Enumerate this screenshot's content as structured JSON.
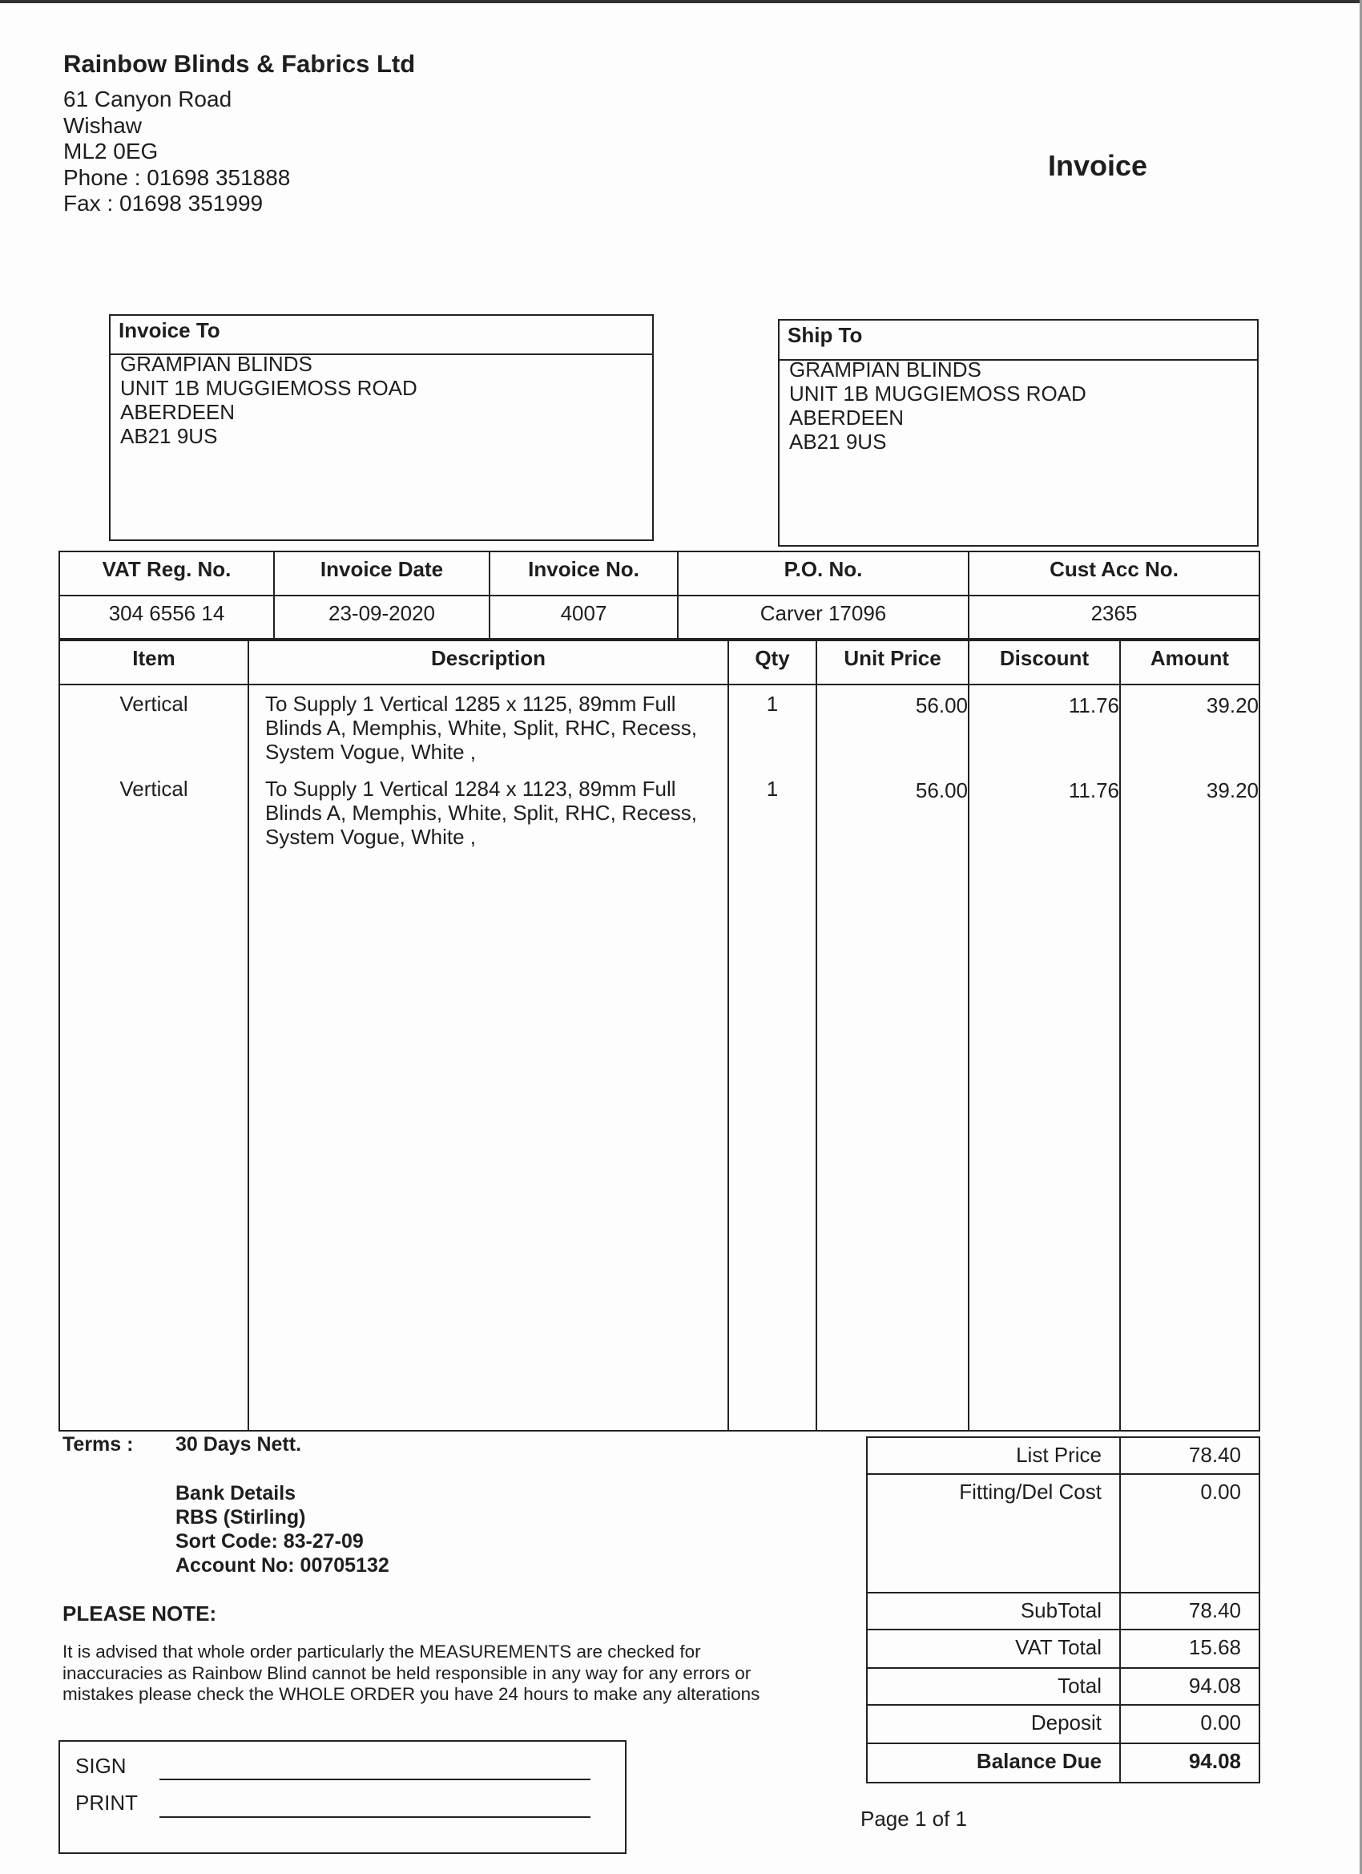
{
  "company": {
    "name": "Rainbow Blinds & Fabrics Ltd",
    "address_lines": [
      "61 Canyon Road",
      "Wishaw",
      "ML2 0EG",
      "Phone : 01698 351888",
      "Fax : 01698 351999"
    ]
  },
  "document_title": "Invoice",
  "invoice_to": {
    "label": "Invoice To",
    "lines": [
      "GRAMPIAN BLINDS",
      "UNIT 1B MUGGIEMOSS ROAD",
      "ABERDEEN",
      "AB21 9US"
    ]
  },
  "ship_to": {
    "label": "Ship To",
    "lines": [
      "GRAMPIAN BLINDS",
      "UNIT 1B MUGGIEMOSS ROAD",
      "ABERDEEN",
      "AB21 9US"
    ]
  },
  "reference": {
    "headers": [
      "VAT Reg. No.",
      "Invoice Date",
      "Invoice No.",
      "P.O. No.",
      "Cust Acc No."
    ],
    "values": [
      "304 6556 14",
      "23-09-2020",
      "4007",
      "Carver 17096",
      "2365"
    ]
  },
  "items": {
    "headers": [
      "Item",
      "Description",
      "Qty",
      "Unit Price",
      "Discount",
      "Amount"
    ],
    "rows": [
      {
        "item": "Vertical",
        "description": [
          "To Supply 1 Vertical  1285 x 1125, 89mm Full",
          "Blinds A, Memphis, White, Split, RHC, Recess,",
          "System Vogue, White ,"
        ],
        "qty": "1",
        "unit_price": "56.00",
        "discount": "11.76",
        "amount": "39.20"
      },
      {
        "item": "Vertical",
        "description": [
          "To Supply 1 Vertical  1284 x 1123, 89mm Full",
          "Blinds A, Memphis, White, Split, RHC, Recess,",
          "System Vogue, White ,"
        ],
        "qty": "1",
        "unit_price": "56.00",
        "discount": "11.76",
        "amount": "39.20"
      }
    ]
  },
  "terms": {
    "label": "Terms :",
    "value": "30 Days Nett.",
    "bank_lines": [
      "Bank Details",
      "RBS (Stirling)",
      "Sort Code: 83-27-09",
      "Account No: 00705132"
    ]
  },
  "please_note": {
    "title": "PLEASE NOTE:",
    "lines": [
      "It is advised that whole order particularly the MEASUREMENTS are checked for",
      "inaccuracies as Rainbow Blind cannot be held responsible in any way for any errors or",
      "mistakes please check the WHOLE ORDER you have 24 hours to make any alterations"
    ]
  },
  "totals": [
    {
      "label": "List Price",
      "value": "78.40"
    },
    {
      "label": "Fitting/Del Cost",
      "value": "0.00"
    },
    {
      "label": "SubTotal",
      "value": "78.40"
    },
    {
      "label": "VAT Total",
      "value": "15.68"
    },
    {
      "label": "Total",
      "value": "94.08"
    },
    {
      "label": "Deposit",
      "value": "0.00"
    },
    {
      "label": "Balance Due",
      "value": "94.08"
    }
  ],
  "signature": {
    "sign_label": "SIGN",
    "print_label": "PRINT"
  },
  "page": "Page  1 of  1"
}
